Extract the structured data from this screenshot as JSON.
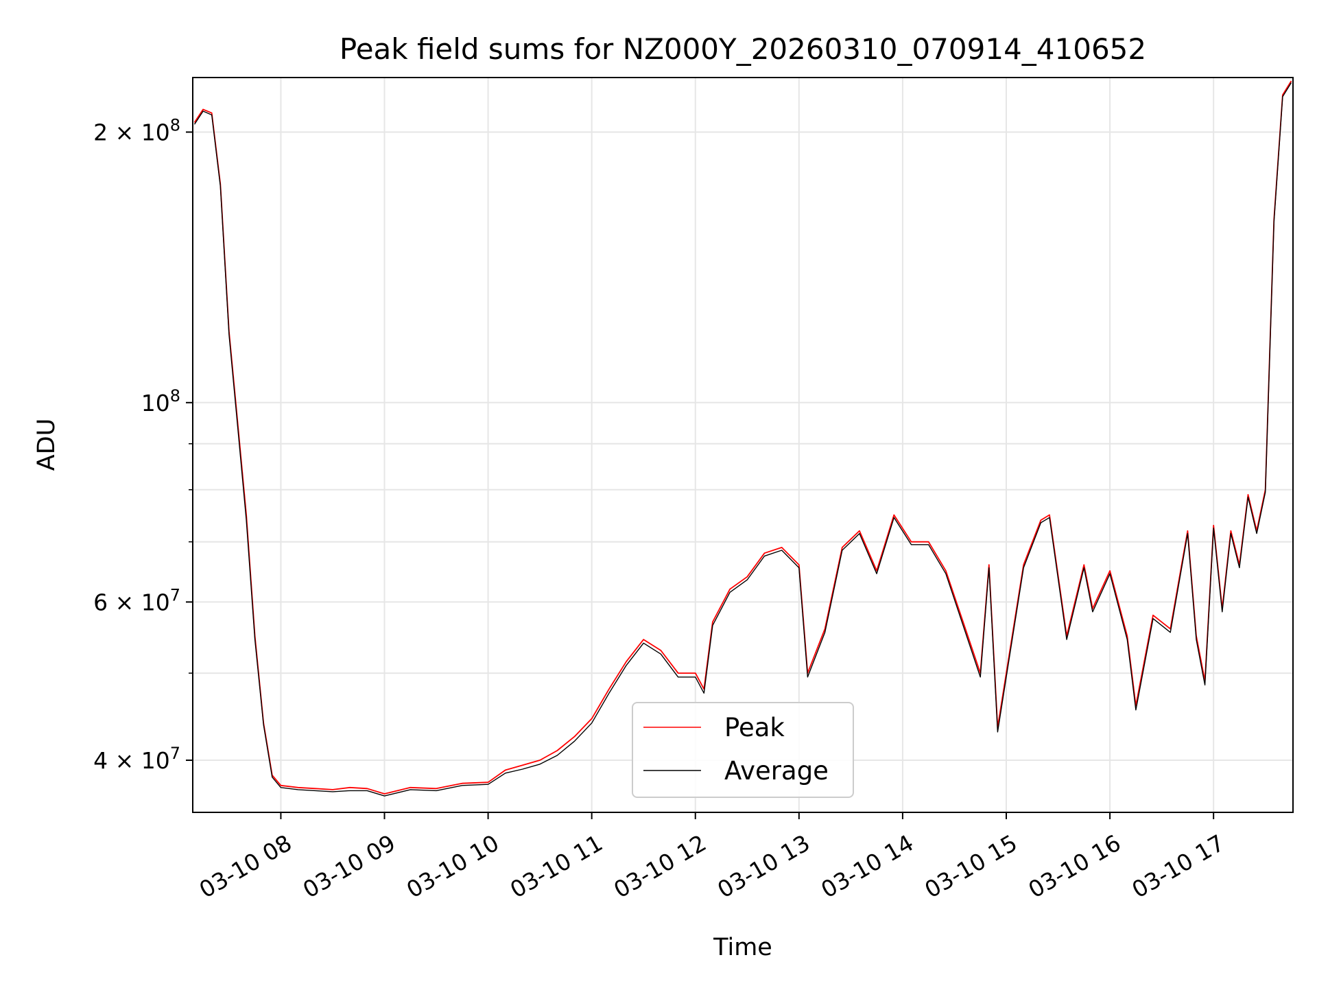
{
  "chart_data": {
    "type": "line",
    "title": "Peak field sums for NZ000Y_20260310_070914_410652",
    "xlabel": "Time",
    "ylabel": "ADU",
    "yscale": "log",
    "xlim": [
      "2026-03-10 07:09",
      "2026-03-10 17:46"
    ],
    "ylim": [
      35000000,
      230000000
    ],
    "grid": true,
    "legend": "lower-center",
    "x_ticks": [
      "03-10 08",
      "03-10 09",
      "03-10 10",
      "03-10 11",
      "03-10 12",
      "03-10 13",
      "03-10 14",
      "03-10 15",
      "03-10 16",
      "03-10 17"
    ],
    "y_ticks": [
      {
        "value": 40000000,
        "mantissa": "4",
        "exp": "7"
      },
      {
        "value": 60000000,
        "mantissa": "6",
        "exp": "7"
      },
      {
        "value": 100000000,
        "mantissa": "",
        "exp": "8"
      },
      {
        "value": 200000000,
        "mantissa": "2",
        "exp": "8"
      }
    ],
    "x": [
      "2026-03-10 07:10",
      "2026-03-10 07:15",
      "2026-03-10 07:20",
      "2026-03-10 07:25",
      "2026-03-10 07:30",
      "2026-03-10 07:35",
      "2026-03-10 07:40",
      "2026-03-10 07:45",
      "2026-03-10 07:50",
      "2026-03-10 07:55",
      "2026-03-10 08:00",
      "2026-03-10 08:10",
      "2026-03-10 08:20",
      "2026-03-10 08:30",
      "2026-03-10 08:40",
      "2026-03-10 08:50",
      "2026-03-10 09:00",
      "2026-03-10 09:15",
      "2026-03-10 09:30",
      "2026-03-10 09:45",
      "2026-03-10 10:00",
      "2026-03-10 10:10",
      "2026-03-10 10:20",
      "2026-03-10 10:30",
      "2026-03-10 10:40",
      "2026-03-10 10:50",
      "2026-03-10 11:00",
      "2026-03-10 11:10",
      "2026-03-10 11:20",
      "2026-03-10 11:30",
      "2026-03-10 11:40",
      "2026-03-10 11:50",
      "2026-03-10 12:00",
      "2026-03-10 12:05",
      "2026-03-10 12:10",
      "2026-03-10 12:20",
      "2026-03-10 12:30",
      "2026-03-10 12:40",
      "2026-03-10 12:50",
      "2026-03-10 13:00",
      "2026-03-10 13:05",
      "2026-03-10 13:15",
      "2026-03-10 13:25",
      "2026-03-10 13:35",
      "2026-03-10 13:45",
      "2026-03-10 13:55",
      "2026-03-10 14:05",
      "2026-03-10 14:15",
      "2026-03-10 14:25",
      "2026-03-10 14:35",
      "2026-03-10 14:45",
      "2026-03-10 14:50",
      "2026-03-10 14:55",
      "2026-03-10 15:00",
      "2026-03-10 15:10",
      "2026-03-10 15:20",
      "2026-03-10 15:25",
      "2026-03-10 15:35",
      "2026-03-10 15:45",
      "2026-03-10 15:50",
      "2026-03-10 16:00",
      "2026-03-10 16:10",
      "2026-03-10 16:15",
      "2026-03-10 16:25",
      "2026-03-10 16:35",
      "2026-03-10 16:45",
      "2026-03-10 16:50",
      "2026-03-10 16:55",
      "2026-03-10 17:00",
      "2026-03-10 17:05",
      "2026-03-10 17:10",
      "2026-03-10 17:15",
      "2026-03-10 17:20",
      "2026-03-10 17:25",
      "2026-03-10 17:30",
      "2026-03-10 17:35",
      "2026-03-10 17:40",
      "2026-03-10 17:45"
    ],
    "series": [
      {
        "name": "Peak",
        "color": "#ff0000",
        "values": [
          205000000,
          212000000,
          210000000,
          175000000,
          120000000,
          95000000,
          75000000,
          55000000,
          44000000,
          38500000,
          37500000,
          37300000,
          37200000,
          37100000,
          37300000,
          37200000,
          36700000,
          37300000,
          37200000,
          37700000,
          37800000,
          39000000,
          39500000,
          40000000,
          41000000,
          42500000,
          44500000,
          48000000,
          51500000,
          54500000,
          53000000,
          50000000,
          50000000,
          48000000,
          57000000,
          62000000,
          64000000,
          68000000,
          69000000,
          66000000,
          50000000,
          56000000,
          69000000,
          72000000,
          65000000,
          75000000,
          70000000,
          70000000,
          65000000,
          57000000,
          50000000,
          66000000,
          43500000,
          50000000,
          66000000,
          74000000,
          75000000,
          55000000,
          66000000,
          59000000,
          65000000,
          55000000,
          46000000,
          58000000,
          56000000,
          72000000,
          55000000,
          49000000,
          73000000,
          59000000,
          72000000,
          66000000,
          79000000,
          72000000,
          80000000,
          160000000,
          220000000,
          228000000
        ]
      },
      {
        "name": "Average",
        "color": "#000000",
        "values": [
          204000000,
          211000000,
          209000000,
          174000000,
          119000000,
          94000000,
          74000000,
          54500000,
          43800000,
          38300000,
          37300000,
          37100000,
          37000000,
          36900000,
          37000000,
          37000000,
          36500000,
          37100000,
          37000000,
          37500000,
          37600000,
          38700000,
          39100000,
          39600000,
          40500000,
          42000000,
          44000000,
          47500000,
          51000000,
          54000000,
          52500000,
          49500000,
          49500000,
          47500000,
          56500000,
          61500000,
          63500000,
          67500000,
          68500000,
          65500000,
          49500000,
          55500000,
          68500000,
          71500000,
          64500000,
          74500000,
          69500000,
          69500000,
          64500000,
          56500000,
          49500000,
          65500000,
          43000000,
          49500000,
          65500000,
          73500000,
          74500000,
          54500000,
          65500000,
          58500000,
          64500000,
          54500000,
          45500000,
          57500000,
          55500000,
          71500000,
          54500000,
          48500000,
          72500000,
          58500000,
          71500000,
          65500000,
          78500000,
          71500000,
          79500000,
          159000000,
          219000000,
          227000000
        ]
      }
    ]
  }
}
